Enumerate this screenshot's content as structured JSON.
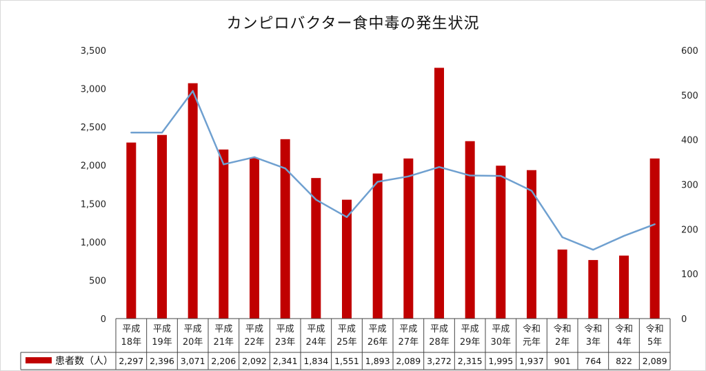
{
  "chart_data": {
    "type": "bar",
    "title": "カンピロバクター食中毒の発生状況",
    "categories": [
      [
        "平成",
        "18年"
      ],
      [
        "平成",
        "19年"
      ],
      [
        "平成",
        "20年"
      ],
      [
        "平成",
        "21年"
      ],
      [
        "平成",
        "22年"
      ],
      [
        "平成",
        "23年"
      ],
      [
        "平成",
        "24年"
      ],
      [
        "平成",
        "25年"
      ],
      [
        "平成",
        "26年"
      ],
      [
        "平成",
        "27年"
      ],
      [
        "平成",
        "28年"
      ],
      [
        "平成",
        "29年"
      ],
      [
        "平成",
        "30年"
      ],
      [
        "令和",
        "元年"
      ],
      [
        "令和",
        "2年"
      ],
      [
        "令和",
        "3年"
      ],
      [
        "令和",
        "4年"
      ],
      [
        "令和",
        "5年"
      ]
    ],
    "series": [
      {
        "name": "患者数（人）",
        "type": "bar",
        "axis": "left",
        "color": "#c00000",
        "values": [
          2297,
          2396,
          3071,
          2206,
          2092,
          2341,
          1834,
          1551,
          1893,
          2089,
          3272,
          2315,
          1995,
          1937,
          901,
          764,
          822,
          2089
        ],
        "value_labels": [
          "2,297",
          "2,396",
          "3,071",
          "2,206",
          "2,092",
          "2,341",
          "1,834",
          "1,551",
          "1,893",
          "2,089",
          "3,272",
          "2,315",
          "1,995",
          "1,937",
          "901",
          "764",
          "822",
          "2,089"
        ]
      },
      {
        "type": "line",
        "axis": "right",
        "color": "#6fa0d0",
        "values": [
          416,
          416,
          509,
          345,
          361,
          336,
          266,
          227,
          306,
          318,
          339,
          320,
          319,
          286,
          182,
          154,
          185,
          211
        ]
      }
    ],
    "y_left": {
      "ylim": [
        0,
        3500
      ],
      "ticks": [
        0,
        500,
        1000,
        1500,
        2000,
        2500,
        3000,
        3500
      ],
      "tick_labels": [
        "0",
        "500",
        "1,000",
        "1,500",
        "2,000",
        "2,500",
        "3,000",
        "3,500"
      ]
    },
    "y_right": {
      "ylim": [
        0,
        600
      ],
      "ticks": [
        0,
        100,
        200,
        300,
        400,
        500,
        600
      ],
      "tick_labels": [
        "0",
        "100",
        "200",
        "300",
        "400",
        "500",
        "600"
      ]
    },
    "grid": false,
    "legend": "data-table"
  }
}
